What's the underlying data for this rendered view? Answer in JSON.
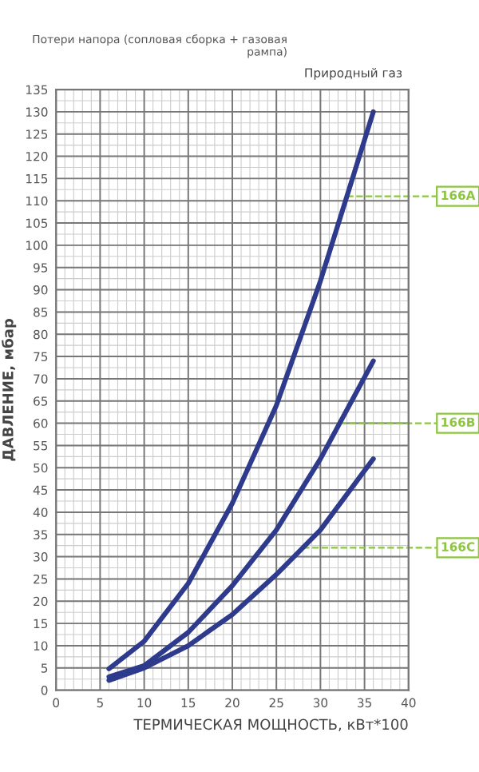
{
  "chart_data": {
    "type": "line",
    "subtitle": "Природный газ",
    "xlabel": "ТЕРМИЧЕСКАЯ МОЩНОСТЬ, кВт*100",
    "ylabel": "ДАВЛЕНИЕ, мбар",
    "x": [
      6,
      10,
      15,
      20,
      25,
      30,
      36
    ],
    "series": [
      {
        "color": "#2e3a8c",
        "values": [
          4.8,
          11,
          24,
          42,
          64,
          92,
          130
        ]
      },
      {
        "color": "#2e3a8c",
        "values": [
          3,
          5.5,
          13,
          23.5,
          36,
          52,
          74
        ]
      },
      {
        "color": "#2e3a8c",
        "values": [
          2.2,
          5,
          10,
          17,
          26,
          36,
          52
        ]
      }
    ],
    "xlim": [
      0,
      40
    ],
    "xticks": [
      0,
      5,
      10,
      15,
      20,
      25,
      30,
      35,
      40
    ],
    "ylim": [
      0,
      135
    ],
    "yticks": [
      0,
      5,
      10,
      15,
      20,
      25,
      30,
      35,
      40,
      45,
      50,
      55,
      60,
      65,
      70,
      75,
      80,
      85,
      90,
      95,
      100,
      105,
      110,
      115,
      120,
      125,
      130,
      135
    ],
    "grid": true,
    "legend": false,
    "marker": "none",
    "line_style": "solid",
    "annotations": [
      "Потери напора (сопловая сборка + газовая рампа)",
      {
        "text": "166A",
        "x": 33,
        "y": 111
      },
      {
        "text": "166B",
        "x": 32.2,
        "y": 60
      },
      {
        "text": "166C",
        "x": 28,
        "y": 32
      }
    ]
  }
}
